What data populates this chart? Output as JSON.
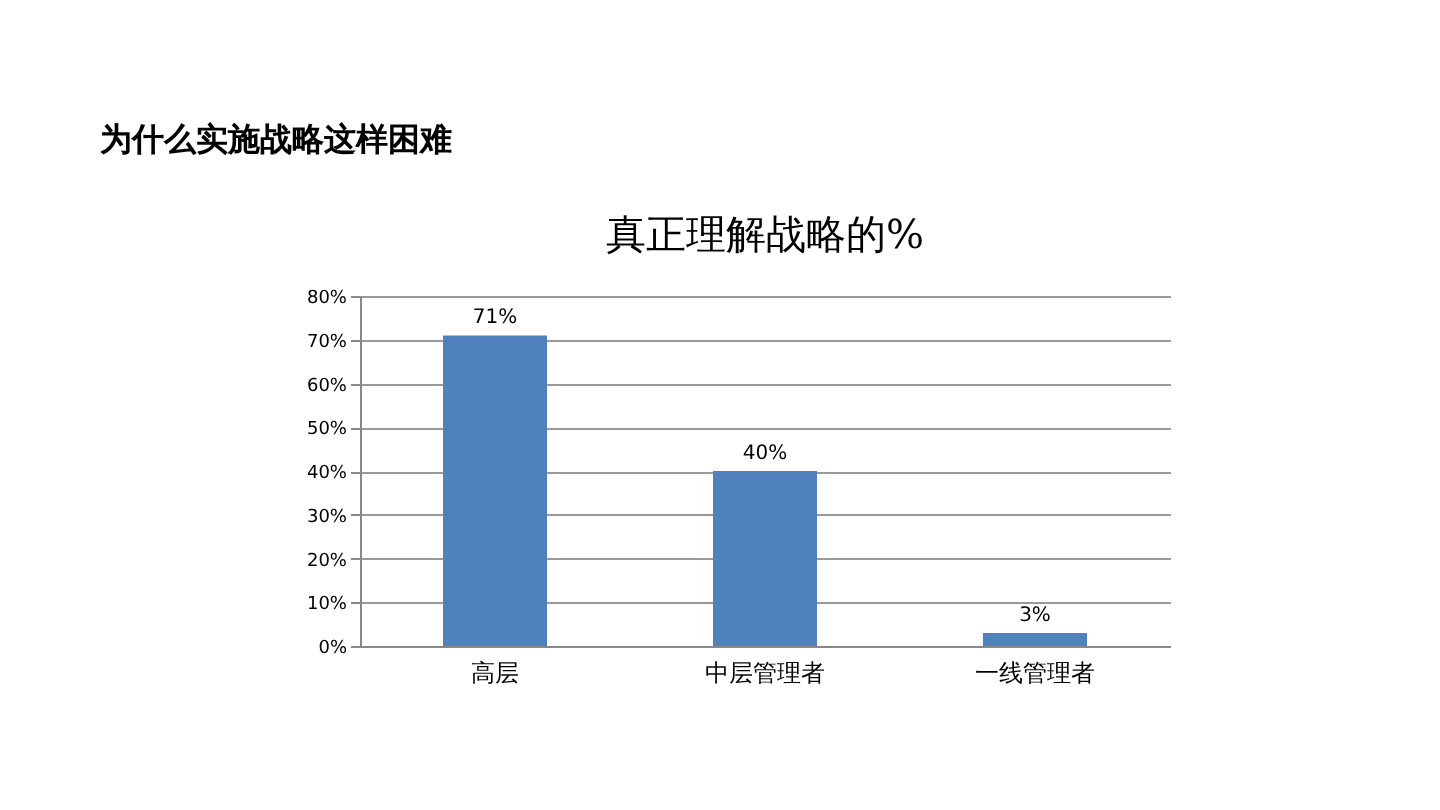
{
  "chart_data": {
    "type": "bar",
    "title": "真正理解战略的%",
    "annotations": [
      "为什么实施战略这样困难"
    ],
    "categories": [
      "高层",
      "中层管理者",
      "一线管理者"
    ],
    "values": [
      71,
      40,
      3
    ],
    "value_labels": [
      "71%",
      "40%",
      "3%"
    ],
    "color": "#4f81bd",
    "ylim": [
      0,
      80
    ],
    "yticks": [
      {
        "value": 0,
        "label": "0%"
      },
      {
        "value": 10,
        "label": "10%"
      },
      {
        "value": 20,
        "label": "20%"
      },
      {
        "value": 30,
        "label": "30%"
      },
      {
        "value": 40,
        "label": "40%"
      },
      {
        "value": 50,
        "label": "50%"
      },
      {
        "value": 60,
        "label": "60%"
      },
      {
        "value": 70,
        "label": "70%"
      },
      {
        "value": 80,
        "label": "80%"
      }
    ],
    "grid": "y"
  }
}
